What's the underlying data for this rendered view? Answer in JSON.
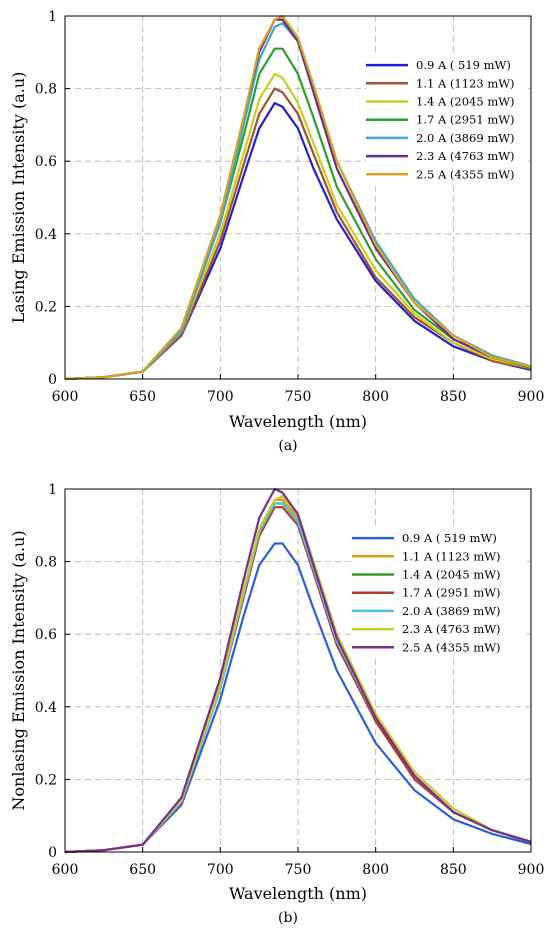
{
  "chart_data": [
    {
      "type": "line",
      "panel_label": "(a)",
      "xlabel": "Wavelength (nm)",
      "ylabel": "Lasing Emission Intensity (a.u)",
      "xlim": [
        600,
        900
      ],
      "ylim": [
        0,
        1
      ],
      "xticks": [
        600,
        650,
        700,
        750,
        800,
        850,
        900
      ],
      "yticks": [
        0,
        0.2,
        0.4,
        0.6,
        0.8,
        1
      ],
      "ytick_labels": [
        "0",
        "0.2",
        "0.4",
        "0.6",
        "0.8",
        "1"
      ],
      "grid": true,
      "legend_position": "top-right",
      "x": [
        600,
        625,
        650,
        675,
        700,
        715,
        725,
        735,
        740,
        750,
        760,
        775,
        800,
        825,
        850,
        875,
        900
      ],
      "series": [
        {
          "name": "0.9 A ( 519 mW)",
          "color": "#1f1fd6",
          "values": [
            0.0,
            0.005,
            0.02,
            0.12,
            0.36,
            0.56,
            0.69,
            0.76,
            0.75,
            0.69,
            0.58,
            0.44,
            0.27,
            0.16,
            0.09,
            0.05,
            0.025
          ]
        },
        {
          "name": "1.1 A (1123 mW)",
          "color": "#a0522d",
          "values": [
            0.0,
            0.005,
            0.02,
            0.12,
            0.38,
            0.59,
            0.73,
            0.8,
            0.79,
            0.73,
            0.62,
            0.46,
            0.28,
            0.17,
            0.1,
            0.05,
            0.028
          ]
        },
        {
          "name": "1.4 A (2045 mW)",
          "color": "#cccc22",
          "values": [
            0.0,
            0.005,
            0.02,
            0.13,
            0.4,
            0.62,
            0.77,
            0.84,
            0.83,
            0.76,
            0.65,
            0.48,
            0.3,
            0.18,
            0.1,
            0.055,
            0.03
          ]
        },
        {
          "name": "1.7 A (2951 mW)",
          "color": "#2ca02c",
          "values": [
            0.0,
            0.005,
            0.02,
            0.14,
            0.43,
            0.67,
            0.84,
            0.91,
            0.91,
            0.84,
            0.72,
            0.53,
            0.33,
            0.19,
            0.11,
            0.06,
            0.03
          ]
        },
        {
          "name": "2.0 A (3869 mW)",
          "color": "#3fa9d4",
          "values": [
            0.0,
            0.005,
            0.02,
            0.13,
            0.43,
            0.7,
            0.88,
            0.97,
            0.98,
            0.93,
            0.8,
            0.6,
            0.38,
            0.22,
            0.12,
            0.065,
            0.035
          ]
        },
        {
          "name": "2.3 A (4763 mW)",
          "color": "#6a2c8c",
          "values": [
            0.0,
            0.005,
            0.02,
            0.14,
            0.45,
            0.72,
            0.9,
            0.99,
            0.99,
            0.93,
            0.79,
            0.58,
            0.36,
            0.21,
            0.11,
            0.06,
            0.032
          ]
        },
        {
          "name": "2.5 A (4355 mW)",
          "color": "#d9a520",
          "values": [
            0.0,
            0.005,
            0.02,
            0.14,
            0.45,
            0.72,
            0.91,
            0.99,
            1.0,
            0.94,
            0.81,
            0.6,
            0.37,
            0.21,
            0.12,
            0.06,
            0.033
          ]
        }
      ]
    },
    {
      "type": "line",
      "panel_label": "(b)",
      "xlabel": "Wavelength (nm)",
      "ylabel": "Nonlasing Emission Intensity (a.u)",
      "xlim": [
        600,
        900
      ],
      "ylim": [
        0,
        1
      ],
      "xticks": [
        600,
        650,
        700,
        750,
        800,
        850,
        900
      ],
      "yticks": [
        0,
        0.2,
        0.4,
        0.6,
        0.8,
        1
      ],
      "ytick_labels": [
        "0",
        "0.2",
        "0.4",
        "0.6",
        "0.8",
        "1"
      ],
      "grid": true,
      "legend_position": "top-right",
      "x": [
        600,
        625,
        650,
        675,
        700,
        715,
        725,
        735,
        740,
        750,
        760,
        775,
        800,
        825,
        850,
        875,
        900
      ],
      "series": [
        {
          "name": "0.9 A ( 519 mW)",
          "color": "#2b5fd9",
          "values": [
            0.0,
            0.005,
            0.02,
            0.13,
            0.42,
            0.65,
            0.79,
            0.85,
            0.85,
            0.79,
            0.67,
            0.5,
            0.3,
            0.17,
            0.09,
            0.05,
            0.022
          ]
        },
        {
          "name": "1.1 A (1123 mW)",
          "color": "#d4a017",
          "values": [
            0.0,
            0.005,
            0.02,
            0.14,
            0.46,
            0.72,
            0.89,
            0.97,
            0.97,
            0.92,
            0.79,
            0.59,
            0.37,
            0.21,
            0.11,
            0.06,
            0.028
          ]
        },
        {
          "name": "1.4 A (2045 mW)",
          "color": "#3a9a2e",
          "values": [
            0.0,
            0.005,
            0.02,
            0.14,
            0.46,
            0.71,
            0.88,
            0.96,
            0.96,
            0.91,
            0.78,
            0.58,
            0.36,
            0.21,
            0.11,
            0.06,
            0.027
          ]
        },
        {
          "name": "1.7 A (2951 mW)",
          "color": "#b83a2b",
          "values": [
            0.0,
            0.005,
            0.02,
            0.14,
            0.45,
            0.7,
            0.87,
            0.95,
            0.95,
            0.9,
            0.77,
            0.57,
            0.36,
            0.2,
            0.11,
            0.06,
            0.027
          ]
        },
        {
          "name": "2.0 A (3869 mW)",
          "color": "#4cc3d9",
          "values": [
            0.0,
            0.005,
            0.02,
            0.14,
            0.45,
            0.71,
            0.88,
            0.96,
            0.96,
            0.91,
            0.78,
            0.58,
            0.37,
            0.21,
            0.11,
            0.06,
            0.028
          ]
        },
        {
          "name": "2.3 A (4763 mW)",
          "color": "#c9c92a",
          "values": [
            0.0,
            0.005,
            0.02,
            0.14,
            0.46,
            0.72,
            0.89,
            0.97,
            0.98,
            0.93,
            0.8,
            0.6,
            0.38,
            0.22,
            0.12,
            0.06,
            0.029
          ]
        },
        {
          "name": "2.5 A (4355 mW)",
          "color": "#7a2e8e",
          "values": [
            0.0,
            0.005,
            0.02,
            0.15,
            0.48,
            0.75,
            0.92,
            1.0,
            0.99,
            0.93,
            0.79,
            0.59,
            0.37,
            0.21,
            0.11,
            0.06,
            0.028
          ]
        }
      ]
    }
  ]
}
